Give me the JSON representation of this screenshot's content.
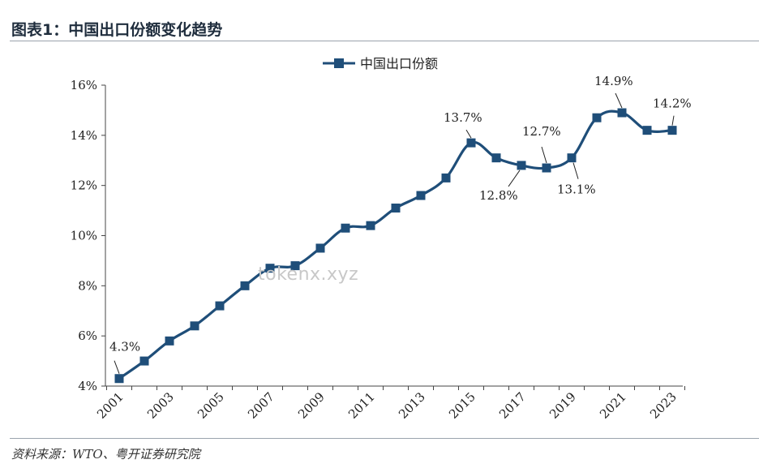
{
  "header": {
    "title": "图表1：中国出口份额变化趋势"
  },
  "footer": {
    "source": "资料来源：WTO、粤开证券研究院"
  },
  "watermark": "tokenx.xyz",
  "colors": {
    "series": "#1f4e79",
    "axis": "#444444"
  },
  "chart_data": {
    "type": "line",
    "title": "",
    "xlabel": "",
    "ylabel": "",
    "x": [
      2001,
      2002,
      2003,
      2004,
      2005,
      2006,
      2007,
      2008,
      2009,
      2010,
      2011,
      2012,
      2013,
      2014,
      2015,
      2016,
      2017,
      2018,
      2019,
      2020,
      2021,
      2022,
      2023
    ],
    "series": [
      {
        "name": "中国出口份额",
        "values": [
          4.3,
          5.0,
          5.8,
          6.4,
          7.2,
          8.0,
          8.7,
          8.8,
          9.5,
          10.3,
          10.4,
          11.1,
          11.6,
          12.3,
          13.7,
          13.1,
          12.8,
          12.7,
          13.1,
          14.7,
          14.9,
          14.2,
          14.2
        ]
      }
    ],
    "ylim": [
      4,
      16
    ],
    "yticks": [
      "4%",
      "6%",
      "8%",
      "10%",
      "12%",
      "14%",
      "16%"
    ],
    "xticks": [
      "2001",
      "2003",
      "2005",
      "2007",
      "2009",
      "2011",
      "2013",
      "2015",
      "2017",
      "2019",
      "2021",
      "2023"
    ],
    "annotations": [
      {
        "year": 2001,
        "text": "4.3%"
      },
      {
        "year": 2015,
        "text": "13.7%"
      },
      {
        "year": 2017,
        "text": "12.8%"
      },
      {
        "year": 2018,
        "text": "12.7%"
      },
      {
        "year": 2019,
        "text": "13.1%"
      },
      {
        "year": 2021,
        "text": "14.9%"
      },
      {
        "year": 2023,
        "text": "14.2%"
      }
    ],
    "legend": "top-center",
    "grid": false,
    "smooth": true
  }
}
